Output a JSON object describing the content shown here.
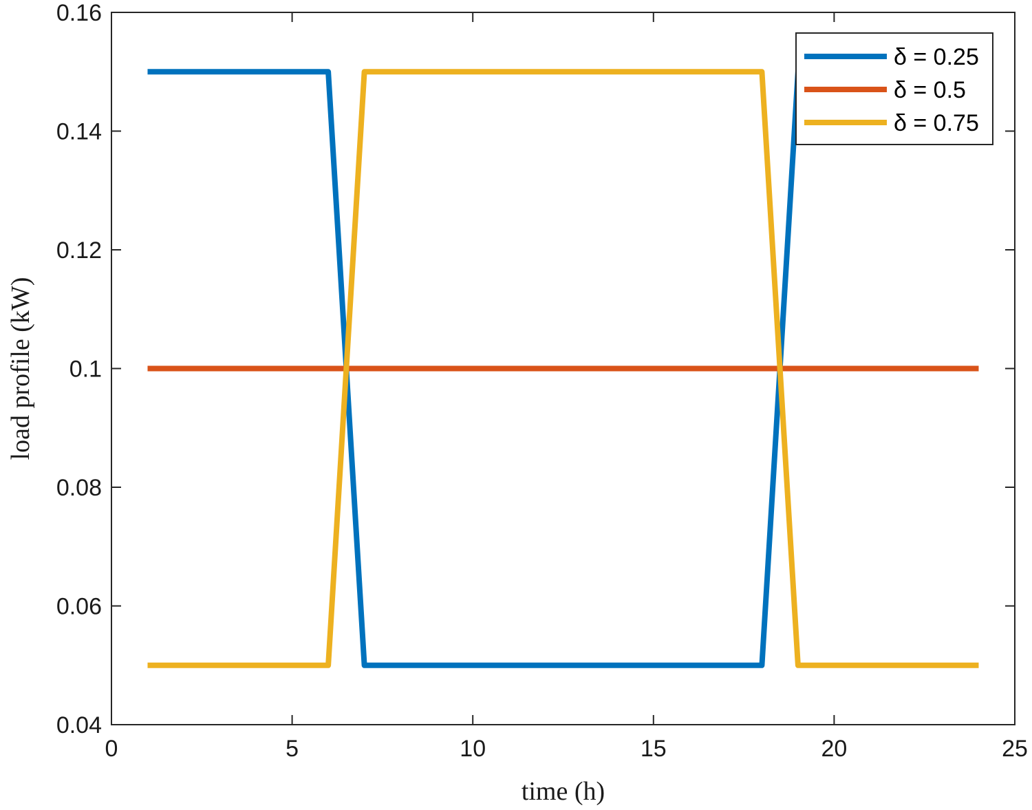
{
  "chart_data": {
    "type": "line",
    "xlabel": "time (h)",
    "ylabel": "load profile (kW)",
    "xlim": [
      0,
      25
    ],
    "ylim": [
      0.04,
      0.16
    ],
    "xticks": [
      0,
      5,
      10,
      15,
      20,
      25
    ],
    "xtick_labels": [
      "0",
      "5",
      "10",
      "15",
      "20",
      "25"
    ],
    "yticks": [
      0.04,
      0.06,
      0.08,
      0.1,
      0.12,
      0.14,
      0.16
    ],
    "ytick_labels": [
      "0.04",
      "0.06",
      "0.08",
      "0.1",
      "0.12",
      "0.14",
      "0.16"
    ],
    "grid": false,
    "legend_position": "top-right",
    "x": [
      1,
      2,
      3,
      4,
      5,
      6,
      7,
      8,
      9,
      10,
      11,
      12,
      13,
      14,
      15,
      16,
      17,
      18,
      19,
      20,
      21,
      22,
      23,
      24
    ],
    "series": [
      {
        "name": "δ = 0.25",
        "color": "#0072BD",
        "values": [
          0.15,
          0.15,
          0.15,
          0.15,
          0.15,
          0.15,
          0.05,
          0.05,
          0.05,
          0.05,
          0.05,
          0.05,
          0.05,
          0.05,
          0.05,
          0.05,
          0.05,
          0.05,
          0.15,
          0.15,
          0.15,
          0.15,
          0.15,
          0.15
        ]
      },
      {
        "name": "δ = 0.5",
        "color": "#D95319",
        "values": [
          0.1,
          0.1,
          0.1,
          0.1,
          0.1,
          0.1,
          0.1,
          0.1,
          0.1,
          0.1,
          0.1,
          0.1,
          0.1,
          0.1,
          0.1,
          0.1,
          0.1,
          0.1,
          0.1,
          0.1,
          0.1,
          0.1,
          0.1,
          0.1
        ]
      },
      {
        "name": "δ = 0.75",
        "color": "#EDB120",
        "values": [
          0.05,
          0.05,
          0.05,
          0.05,
          0.05,
          0.05,
          0.15,
          0.15,
          0.15,
          0.15,
          0.15,
          0.15,
          0.15,
          0.15,
          0.15,
          0.15,
          0.15,
          0.15,
          0.05,
          0.05,
          0.05,
          0.05,
          0.05,
          0.05
        ]
      }
    ]
  }
}
